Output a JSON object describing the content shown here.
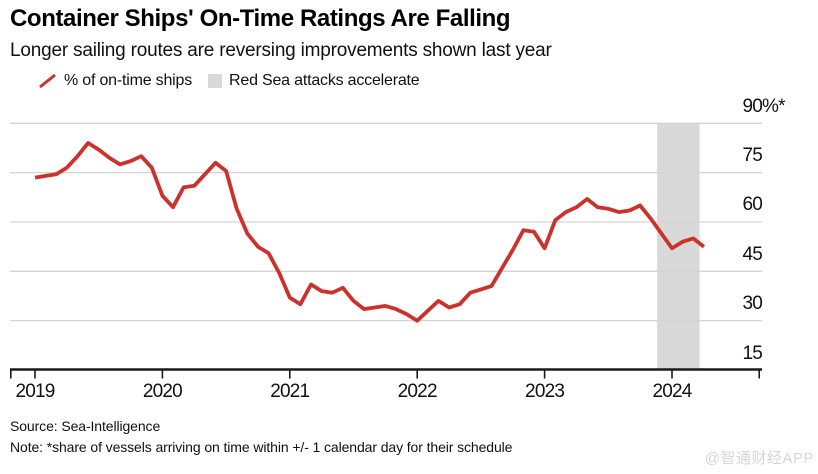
{
  "header": {
    "title": "Container Ships' On-Time Ratings Are Falling",
    "subtitle": "Longer sailing routes are reversing improvements shown last year"
  },
  "legend": {
    "items": [
      {
        "label": "% of on-time ships",
        "marker": "red-slash",
        "color": "#cc322c"
      },
      {
        "label": "Red Sea attacks accelerate",
        "marker": "gray-square",
        "color": "#d9d9d9"
      }
    ]
  },
  "footer": {
    "source": "Source: Sea-Intelligence",
    "note": "Note: *share of vessels arriving on time within +/- 1 calendar day for their schedule"
  },
  "watermark": "@智通财经APP",
  "chart_data": {
    "type": "line",
    "title": "Container Ships' On-Time Ratings Are Falling",
    "grid": "horizontal",
    "ylim": [
      15,
      90
    ],
    "y_ticks": [
      90,
      75,
      60,
      45,
      30,
      15
    ],
    "y_tick_labels": [
      "90%*",
      "75",
      "60",
      "45",
      "30",
      "15"
    ],
    "x_ticks": [
      "2019",
      "2020",
      "2021",
      "2022",
      "2023",
      "2024"
    ],
    "series": [
      {
        "name": "% of on-time ships",
        "color": "#cc322c",
        "start": "2019-01",
        "frequency": "monthly",
        "values": [
          73.5,
          74,
          74.5,
          76.5,
          80,
          84,
          82,
          79.5,
          77.5,
          78.5,
          80,
          76.5,
          68,
          64.5,
          70.5,
          71,
          74.5,
          78,
          75.5,
          64,
          56.5,
          52.5,
          50.5,
          44.5,
          37,
          35,
          41,
          39,
          38.5,
          40,
          36,
          33.5,
          34,
          34.5,
          33.5,
          32,
          30,
          33,
          36,
          34,
          35,
          38.5,
          39.5,
          40.5,
          46,
          51.5,
          57.5,
          57,
          52,
          60.5,
          63,
          64.5,
          67,
          64.5,
          64,
          63,
          63.5,
          65,
          61,
          56.5,
          52,
          54,
          55,
          52.5
        ]
      }
    ],
    "band": {
      "label": "Red Sea attacks accelerate",
      "color": "#d9d9d9",
      "from": "2023-12",
      "to": "2024-04",
      "from_month_index": 58.6,
      "to_month_index": 62.6
    }
  }
}
